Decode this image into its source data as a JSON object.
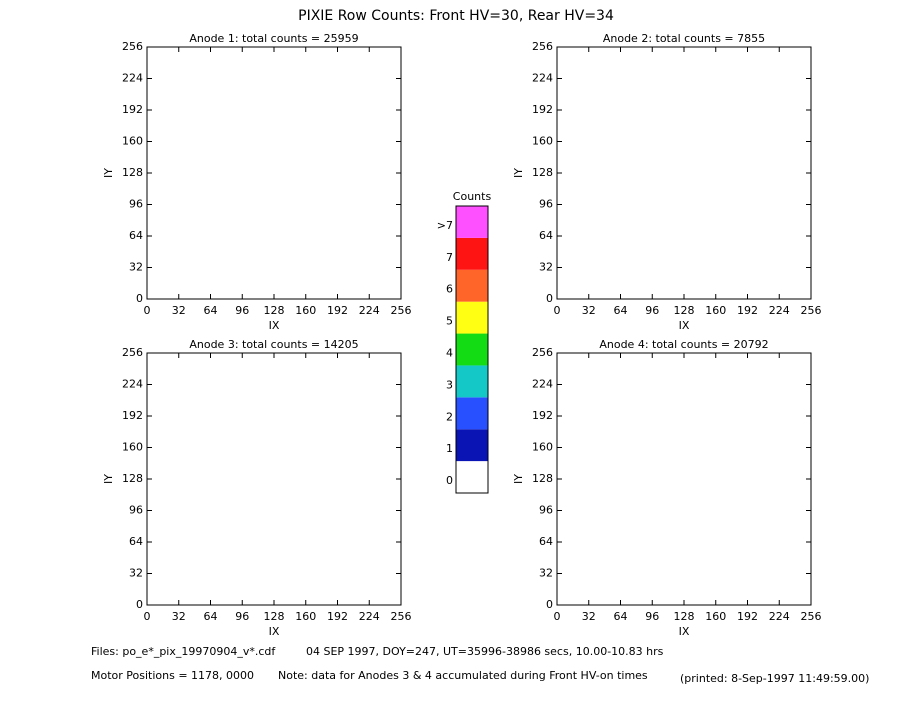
{
  "title": "PIXIE Row Counts:  Front HV=30, Rear HV=34",
  "chart_data": [
    {
      "type": "heatmap",
      "title": "Anode 1: total counts = 25959",
      "x_label": "IX",
      "y_label": "IY",
      "xlim": [
        0,
        256
      ],
      "ylim": [
        0,
        256
      ],
      "xticks": [
        0,
        32,
        64,
        96,
        128,
        160,
        192,
        224,
        256
      ],
      "yticks": [
        0,
        32,
        64,
        96,
        128,
        160,
        192,
        224,
        256
      ]
    },
    {
      "type": "heatmap",
      "title": "Anode 2: total counts = 7855",
      "x_label": "IX",
      "y_label": "IY",
      "xlim": [
        0,
        256
      ],
      "ylim": [
        0,
        256
      ],
      "xticks": [
        0,
        32,
        64,
        96,
        128,
        160,
        192,
        224,
        256
      ],
      "yticks": [
        0,
        32,
        64,
        96,
        128,
        160,
        192,
        224,
        256
      ]
    },
    {
      "type": "heatmap",
      "title": "Anode 3: total counts = 14205",
      "x_label": "IX",
      "y_label": "IY",
      "xlim": [
        0,
        256
      ],
      "ylim": [
        0,
        256
      ],
      "xticks": [
        0,
        32,
        64,
        96,
        128,
        160,
        192,
        224,
        256
      ],
      "yticks": [
        0,
        32,
        64,
        96,
        128,
        160,
        192,
        224,
        256
      ]
    },
    {
      "type": "heatmap",
      "title": "Anode 4: total counts = 20792",
      "x_label": "IX",
      "y_label": "IY",
      "xlim": [
        0,
        256
      ],
      "ylim": [
        0,
        256
      ],
      "xticks": [
        0,
        32,
        64,
        96,
        128,
        160,
        192,
        224,
        256
      ],
      "yticks": [
        0,
        32,
        64,
        96,
        128,
        160,
        192,
        224,
        256
      ]
    }
  ],
  "colorbar": {
    "title": "Counts",
    "categories": [
      "0",
      "1",
      "2",
      "3",
      "4",
      "5",
      "6",
      "7",
      ">7"
    ],
    "colors": [
      "#ffffff",
      "#0a14b4",
      "#2850ff",
      "#14c8c8",
      "#14dc14",
      "#ffff14",
      "#ff6428",
      "#ff1414",
      "#ff50ff"
    ]
  },
  "footer": {
    "files": "Files: po_e*_pix_19970904_v*.cdf",
    "time": "04 SEP 1997, DOY=247, UT=35996-38986 secs, 10.00-10.83 hrs",
    "motor": "Motor Positions = 1178, 0000",
    "note": "Note: data for Anodes 3 & 4 accumulated during Front HV-on times",
    "printed": "(printed:  8-Sep-1997 11:49:59.00)"
  }
}
